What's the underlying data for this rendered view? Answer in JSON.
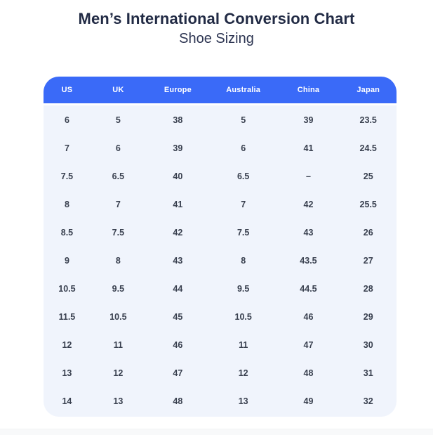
{
  "page": {
    "title": "Men’s International Conversion Chart",
    "subtitle": "Shoe Sizing"
  },
  "colors": {
    "header_bg": "#3a6af8",
    "header_text": "#ffffff",
    "body_bg": "#f0f4fc",
    "title_color": "#222b45",
    "subtitle_color": "#2d3552",
    "cell_text": "#39404f"
  },
  "chart_data": {
    "type": "table",
    "title": "Men’s International Conversion Chart",
    "subtitle": "Shoe Sizing",
    "columns": [
      "US",
      "UK",
      "Europe",
      "Australia",
      "China",
      "Japan"
    ],
    "rows": [
      [
        "6",
        "5",
        "38",
        "5",
        "39",
        "23.5"
      ],
      [
        "7",
        "6",
        "39",
        "6",
        "41",
        "24.5"
      ],
      [
        "7.5",
        "6.5",
        "40",
        "6.5",
        "–",
        "25"
      ],
      [
        "8",
        "7",
        "41",
        "7",
        "42",
        "25.5"
      ],
      [
        "8.5",
        "7.5",
        "42",
        "7.5",
        "43",
        "26"
      ],
      [
        "9",
        "8",
        "43",
        "8",
        "43.5",
        "27"
      ],
      [
        "10.5",
        "9.5",
        "44",
        "9.5",
        "44.5",
        "28"
      ],
      [
        "11.5",
        "10.5",
        "45",
        "10.5",
        "46",
        "29"
      ],
      [
        "12",
        "11",
        "46",
        "11",
        "47",
        "30"
      ],
      [
        "13",
        "12",
        "47",
        "12",
        "48",
        "31"
      ],
      [
        "14",
        "13",
        "48",
        "13",
        "49",
        "32"
      ]
    ]
  }
}
